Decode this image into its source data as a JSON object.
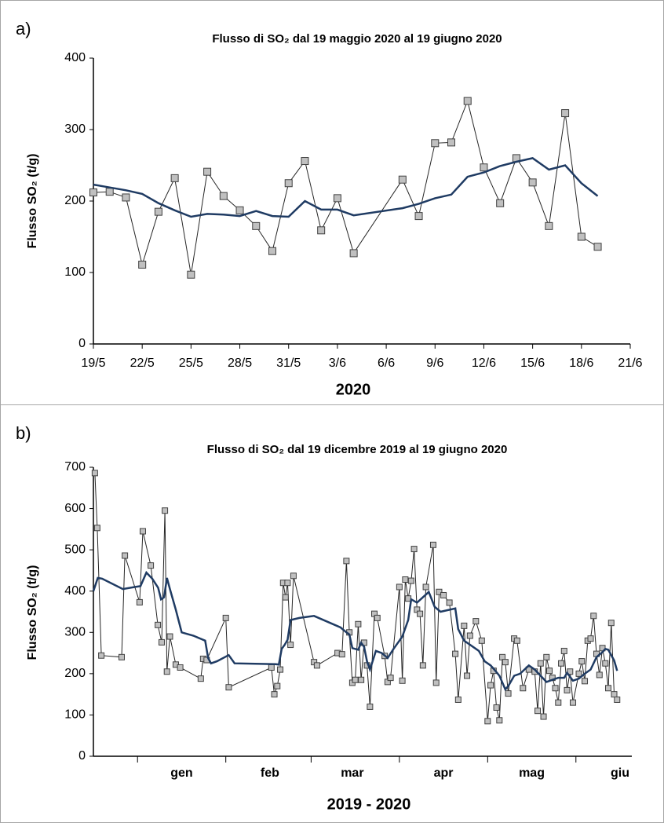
{
  "chart_data": [
    {
      "type": "line",
      "panel_label": "a)",
      "title": "Flusso di SO₂ dal 19 maggio 2020 al 19 giugno 2020",
      "ylabel": "Flusso SO₂ (t/g)",
      "xlabel": "2020",
      "xlim": [
        "19/5",
        "21/6"
      ],
      "xticks": [
        "19/5",
        "22/5",
        "25/5",
        "28/5",
        "31/5",
        "3/6",
        "6/6",
        "9/6",
        "12/6",
        "15/6",
        "18/6",
        "21/6"
      ],
      "ylim": [
        0,
        400
      ],
      "yticks": [
        0,
        100,
        200,
        300,
        400
      ],
      "grid": false,
      "series": [
        {
          "color": "#262626",
          "marker": "square",
          "marker_color": "#c0c0c0",
          "x": [
            "19/5",
            "20/5",
            "21/5",
            "22/5",
            "23/5",
            "24/5",
            "25/5",
            "26/5",
            "27/5",
            "28/5",
            "29/5",
            "30/5",
            "31/5",
            "1/6",
            "2/6",
            "3/6",
            "4/6",
            "7/6",
            "8/6",
            "9/6",
            "10/6",
            "11/6",
            "12/6",
            "13/6",
            "14/6",
            "15/6",
            "16/6",
            "17/6",
            "18/6",
            "19/6"
          ],
          "values": [
            212,
            213,
            205,
            111,
            185,
            232,
            97,
            241,
            207,
            187,
            165,
            130,
            225,
            256,
            159,
            204,
            127,
            230,
            179,
            281,
            282,
            340,
            247,
            197,
            260,
            226,
            165,
            323,
            150,
            136
          ]
        },
        {
          "color": "#1f3b63",
          "x": [
            "19/5",
            "20/5",
            "21/5",
            "22/5",
            "23/5",
            "24/5",
            "25/5",
            "26/5",
            "27/5",
            "28/5",
            "29/5",
            "30/5",
            "31/5",
            "1/6",
            "2/6",
            "3/6",
            "4/6",
            "7/6",
            "8/6",
            "9/6",
            "10/6",
            "11/6",
            "12/6",
            "13/6",
            "14/6",
            "15/6",
            "16/6",
            "17/6",
            "18/6",
            "19/6"
          ],
          "values": [
            223,
            219,
            215,
            210,
            197,
            187,
            178,
            182,
            181,
            179,
            186,
            179,
            178,
            200,
            188,
            188,
            180,
            190,
            196,
            204,
            209,
            234,
            240,
            249,
            255,
            260,
            244,
            250,
            225,
            207
          ]
        }
      ]
    },
    {
      "type": "line",
      "panel_label": "b)",
      "title": "Flusso di SO₂ dal 19 dicembre 2019 al 19 giugno 2020",
      "ylabel": "Flusso SO₂ (t/g)",
      "xlabel": "2019 - 2020",
      "xlim": [
        0,
        183
      ],
      "xticks": [
        {
          "value": 30,
          "label": "gen"
        },
        {
          "value": 60,
          "label": "feb"
        },
        {
          "value": 88,
          "label": "mar"
        },
        {
          "value": 119,
          "label": "apr"
        },
        {
          "value": 149,
          "label": "mag"
        },
        {
          "value": 179,
          "label": "giu"
        }
      ],
      "xminorticks": [
        15,
        45,
        74,
        104,
        134,
        164
      ],
      "ylim": [
        0,
        700
      ],
      "yticks": [
        0,
        100,
        200,
        300,
        400,
        500,
        600,
        700
      ],
      "grid": false,
      "series": [
        {
          "color": "#262626",
          "marker": "square",
          "marker_color": "#c0c0c0",
          "x": [
            0.5,
            1.3,
            2.7,
            9.6,
            10.7,
            15.7,
            16.8,
            19.5,
            21.9,
            23.2,
            24.3,
            25,
            26,
            28,
            29.5,
            36.5,
            37.3,
            38.5,
            45,
            46,
            60.5,
            61.5,
            62.5,
            63.5,
            64.5,
            65.3,
            66,
            67,
            68,
            75,
            76,
            83,
            84.5,
            86,
            87,
            88,
            89,
            90,
            91,
            92,
            93,
            94,
            95.5,
            96.5,
            99,
            100,
            101,
            104,
            105,
            106,
            107,
            108,
            109,
            110,
            111,
            112,
            113,
            115.5,
            116.5,
            117.5,
            119,
            121,
            123,
            124,
            126,
            127,
            128,
            130,
            132,
            134,
            135,
            136,
            137,
            138,
            139,
            140,
            141,
            143,
            144,
            146,
            148,
            150,
            151,
            152,
            153,
            154,
            155,
            156,
            157,
            158,
            159,
            160,
            161,
            162,
            163,
            165,
            166,
            167,
            168,
            169,
            170,
            171,
            172,
            173,
            174,
            175,
            176,
            177,
            178
          ],
          "values": [
            686,
            553,
            244,
            240,
            486,
            373,
            545,
            462,
            318,
            276,
            595,
            205,
            290,
            222,
            215,
            188,
            236,
            233,
            335,
            167,
            215,
            150,
            170,
            210,
            420,
            385,
            420,
            270,
            437,
            228,
            220,
            250,
            247,
            473,
            300,
            178,
            185,
            320,
            185,
            275,
            220,
            120,
            345,
            335,
            243,
            180,
            190,
            410,
            183,
            428,
            382,
            425,
            502,
            355,
            345,
            220,
            410,
            512,
            178,
            398,
            390,
            372,
            248,
            137,
            316,
            195,
            292,
            327,
            280,
            85,
            172,
            207,
            118,
            87,
            240,
            228,
            152,
            285,
            280,
            165,
            210,
            205,
            110,
            225,
            96,
            240,
            207,
            190,
            165,
            130,
            225,
            255,
            160,
            205,
            130,
            200,
            230,
            182,
            280,
            285,
            340,
            248,
            197,
            262,
            225,
            165,
            323,
            150,
            137
          ]
        },
        {
          "color": "#1f3b63",
          "x": [
            0,
            1.5,
            3,
            10,
            14,
            16,
            18,
            20,
            22,
            23,
            24,
            25,
            26,
            28,
            30,
            34,
            38,
            39,
            40,
            42,
            46,
            48,
            62,
            63,
            64,
            65,
            66,
            67,
            70,
            75,
            84,
            86,
            87,
            88,
            90,
            91,
            92,
            93,
            94,
            96,
            98,
            100,
            102,
            104,
            105,
            107,
            108,
            110,
            112,
            114,
            116,
            118,
            123,
            124,
            126,
            131,
            133,
            135,
            136,
            138,
            140,
            141,
            143,
            145,
            148,
            150,
            152,
            154,
            156,
            158,
            160,
            161,
            163,
            165,
            167,
            169,
            171,
            173,
            174,
            175,
            177,
            178
          ],
          "values": [
            400,
            432,
            430,
            405,
            410,
            412,
            445,
            430,
            408,
            380,
            385,
            432,
            405,
            355,
            300,
            292,
            280,
            238,
            225,
            230,
            245,
            225,
            223,
            222,
            260,
            270,
            282,
            330,
            335,
            340,
            312,
            300,
            295,
            262,
            258,
            275,
            265,
            230,
            210,
            255,
            250,
            238,
            260,
            280,
            290,
            330,
            380,
            372,
            385,
            398,
            362,
            350,
            358,
            308,
            280,
            255,
            230,
            220,
            212,
            195,
            162,
            170,
            195,
            200,
            220,
            210,
            195,
            180,
            185,
            190,
            190,
            202,
            183,
            188,
            200,
            210,
            240,
            252,
            260,
            258,
            232,
            207
          ]
        }
      ]
    }
  ]
}
